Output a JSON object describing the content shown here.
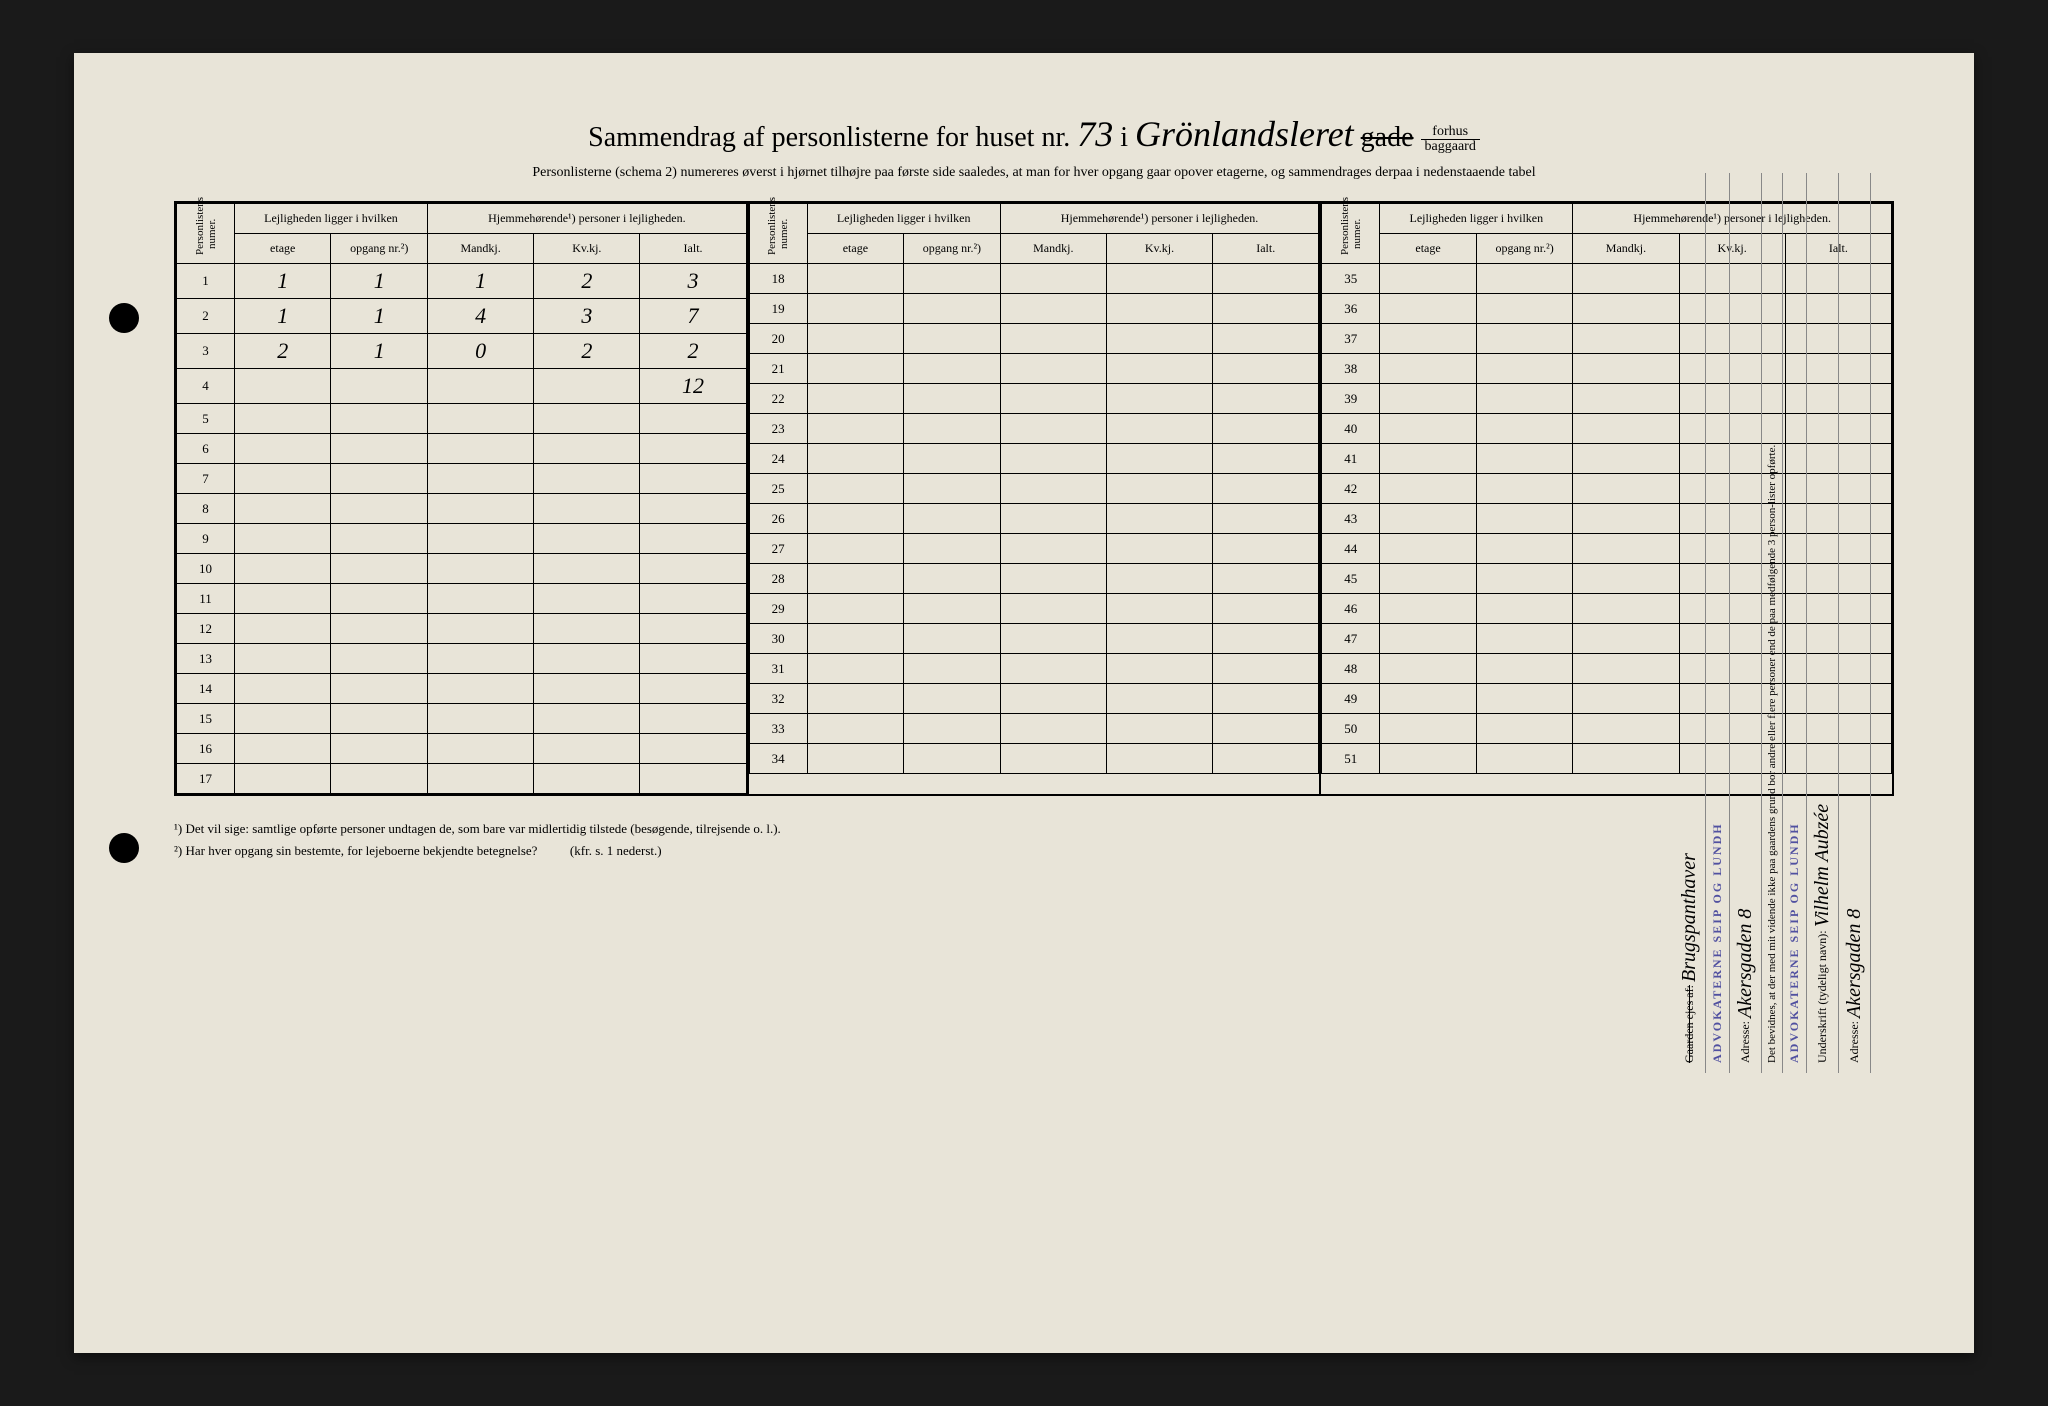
{
  "title": {
    "prefix": "Sammendrag af personlisterne for huset nr.",
    "house_number": "73",
    "in_word": "i",
    "street_handwritten": "Grönlandsleret",
    "struck_word": "gade",
    "fraction_top": "forhus",
    "fraction_bottom": "baggaard"
  },
  "subtitle": "Personlisterne (schema 2) numereres øverst i hjørnet tilhøjre paa første side saaledes, at man for hver opgang gaar opover etagerne, og sammendrages derpaa i nedenstaaende tabel",
  "headers": {
    "personlist_num": "Personlistens numer.",
    "lejlighed": "Lejligheden ligger i hvilken",
    "hjemme": "Hjemmehørende¹) personer i lejligheden.",
    "etage": "etage",
    "opgang": "opgang nr.²)",
    "mandkj": "Mandkj.",
    "kvkj": "Kv.kj.",
    "ialt": "Ialt."
  },
  "blocks": [
    {
      "rows": [
        {
          "num": "1",
          "etage": "1",
          "opgang": "1",
          "mandkj": "1",
          "kvkj": "2",
          "ialt": "3"
        },
        {
          "num": "2",
          "etage": "1",
          "opgang": "1",
          "mandkj": "4",
          "kvkj": "3",
          "ialt": "7"
        },
        {
          "num": "3",
          "etage": "2",
          "opgang": "1",
          "mandkj": "0",
          "kvkj": "2",
          "ialt": "2"
        },
        {
          "num": "4",
          "etage": "",
          "opgang": "",
          "mandkj": "",
          "kvkj": "",
          "ialt": "12"
        },
        {
          "num": "5",
          "etage": "",
          "opgang": "",
          "mandkj": "",
          "kvkj": "",
          "ialt": ""
        },
        {
          "num": "6",
          "etage": "",
          "opgang": "",
          "mandkj": "",
          "kvkj": "",
          "ialt": ""
        },
        {
          "num": "7",
          "etage": "",
          "opgang": "",
          "mandkj": "",
          "kvkj": "",
          "ialt": ""
        },
        {
          "num": "8",
          "etage": "",
          "opgang": "",
          "mandkj": "",
          "kvkj": "",
          "ialt": ""
        },
        {
          "num": "9",
          "etage": "",
          "opgang": "",
          "mandkj": "",
          "kvkj": "",
          "ialt": ""
        },
        {
          "num": "10",
          "etage": "",
          "opgang": "",
          "mandkj": "",
          "kvkj": "",
          "ialt": ""
        },
        {
          "num": "11",
          "etage": "",
          "opgang": "",
          "mandkj": "",
          "kvkj": "",
          "ialt": ""
        },
        {
          "num": "12",
          "etage": "",
          "opgang": "",
          "mandkj": "",
          "kvkj": "",
          "ialt": ""
        },
        {
          "num": "13",
          "etage": "",
          "opgang": "",
          "mandkj": "",
          "kvkj": "",
          "ialt": ""
        },
        {
          "num": "14",
          "etage": "",
          "opgang": "",
          "mandkj": "",
          "kvkj": "",
          "ialt": ""
        },
        {
          "num": "15",
          "etage": "",
          "opgang": "",
          "mandkj": "",
          "kvkj": "",
          "ialt": ""
        },
        {
          "num": "16",
          "etage": "",
          "opgang": "",
          "mandkj": "",
          "kvkj": "",
          "ialt": ""
        },
        {
          "num": "17",
          "etage": "",
          "opgang": "",
          "mandkj": "",
          "kvkj": "",
          "ialt": ""
        }
      ]
    },
    {
      "rows": [
        {
          "num": "18"
        },
        {
          "num": "19"
        },
        {
          "num": "20"
        },
        {
          "num": "21"
        },
        {
          "num": "22"
        },
        {
          "num": "23"
        },
        {
          "num": "24"
        },
        {
          "num": "25"
        },
        {
          "num": "26"
        },
        {
          "num": "27"
        },
        {
          "num": "28"
        },
        {
          "num": "29"
        },
        {
          "num": "30"
        },
        {
          "num": "31"
        },
        {
          "num": "32"
        },
        {
          "num": "33"
        },
        {
          "num": "34"
        }
      ]
    },
    {
      "rows": [
        {
          "num": "35"
        },
        {
          "num": "36"
        },
        {
          "num": "37"
        },
        {
          "num": "38"
        },
        {
          "num": "39"
        },
        {
          "num": "40"
        },
        {
          "num": "41"
        },
        {
          "num": "42"
        },
        {
          "num": "43"
        },
        {
          "num": "44"
        },
        {
          "num": "45"
        },
        {
          "num": "46"
        },
        {
          "num": "47"
        },
        {
          "num": "48"
        },
        {
          "num": "49"
        },
        {
          "num": "50"
        },
        {
          "num": "51"
        }
      ]
    }
  ],
  "footnotes": {
    "f1": "¹)  Det vil sige: samtlige opførte personer undtagen de, som bare var midlertidig tilstede (besøgende, tilrejsende o. l.).",
    "f2": "²)  Har hver opgang sin bestemte, for lejeboerne bekjendte betegnelse?",
    "f2_ref": "(kfr. s. 1 nederst.)"
  },
  "side": {
    "gaarden": "Gaarden ejes af:",
    "owner_script": "Brugspanthaver",
    "stamp1": "ADVOKATERNE SEIP OG LUNDH",
    "adresse_label": "Adresse:",
    "adresse_script": "Akersgaden 8",
    "bevidnes": "Det bevidnes, at der med mit vidende ikke paa gaardens grund bor andre eller flere personer end de paa medfølgende 3 person-lister opførte.",
    "stamp2": "ADVOKATERNE SEIP OG LUNDH",
    "underskrift_label": "Underskrift (tydeligt navn):",
    "signature": "Vilhelm Aubzée",
    "adresse2": "Akersgaden 8"
  },
  "colors": {
    "paper": "#e8e4d8",
    "ink": "#000000",
    "stamp": "#5050a0"
  }
}
